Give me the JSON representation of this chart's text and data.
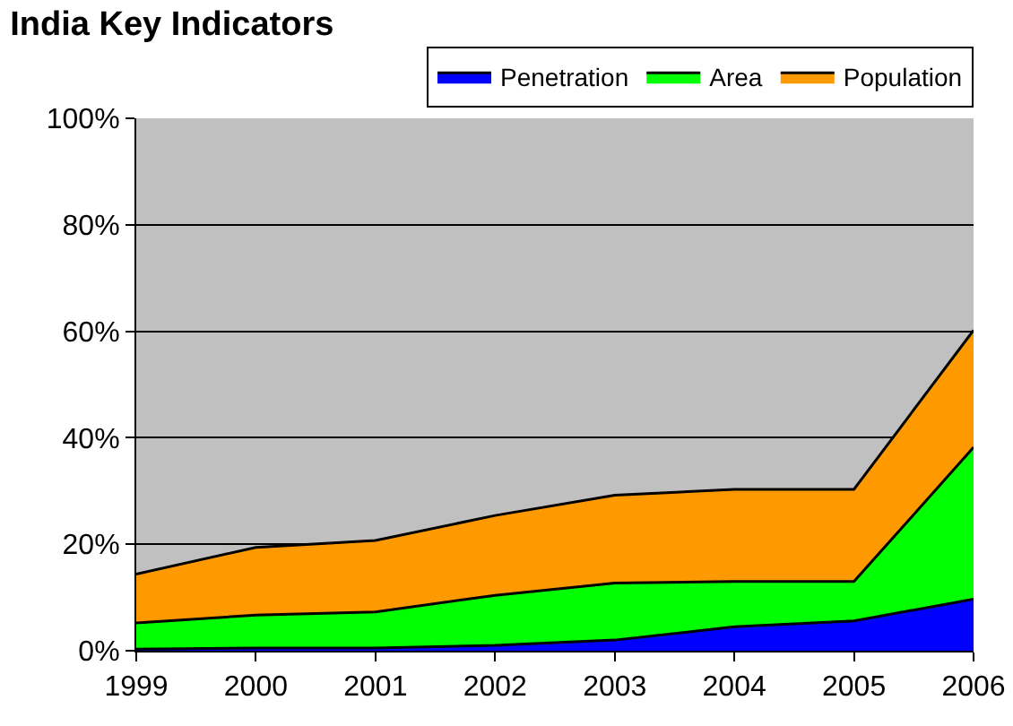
{
  "chart_data": {
    "type": "area",
    "title": "India Key Indicators",
    "stacked": true,
    "categories": [
      "1999",
      "2000",
      "2001",
      "2002",
      "2003",
      "2004",
      "2005",
      "2006"
    ],
    "series": [
      {
        "name": "Penetration",
        "color": "#0000ff",
        "values": [
          0.3,
          0.5,
          0.5,
          1.0,
          2.0,
          4.5,
          5.6,
          9.7
        ]
      },
      {
        "name": "Area",
        "color": "#00ff00",
        "values": [
          4.9,
          6.2,
          6.8,
          9.4,
          10.7,
          8.5,
          7.4,
          28.5
        ]
      },
      {
        "name": "Population",
        "color": "#ff9900",
        "values": [
          9.2,
          12.7,
          13.4,
          15.0,
          16.5,
          17.3,
          17.3,
          22.0
        ]
      }
    ],
    "ylim": [
      0,
      100
    ],
    "yticks": [
      {
        "value": 0,
        "label": "0%"
      },
      {
        "value": 20,
        "label": "20%"
      },
      {
        "value": 40,
        "label": "40%"
      },
      {
        "value": 60,
        "label": "60%"
      },
      {
        "value": 80,
        "label": "80%"
      },
      {
        "value": 100,
        "label": "100%"
      }
    ],
    "grid": "y",
    "legend": "top right"
  }
}
